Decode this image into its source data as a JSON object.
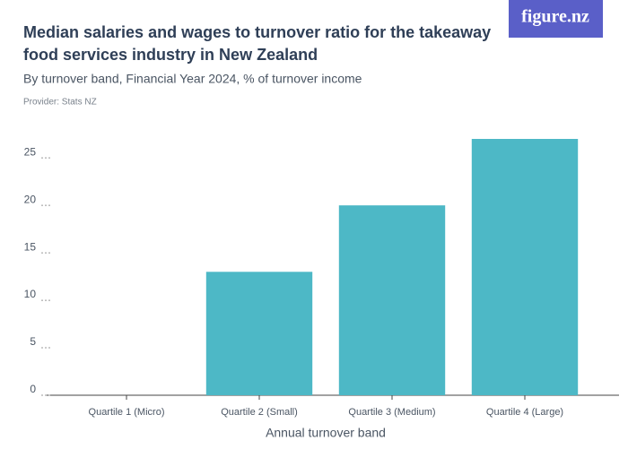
{
  "logo": "figure.nz",
  "chart_data": {
    "type": "bar",
    "title": "Median salaries and wages to turnover ratio for the takeaway food services industry in New Zealand",
    "subtitle": "By turnover band, Financial Year 2024, % of turnover income",
    "provider": "Provider: Stats NZ",
    "x_label": "Annual turnover band",
    "categories": [
      "Quartile 1 (Micro)",
      "Quartile 2 (Small)",
      "Quartile 3 (Medium)",
      "Quartile 4 (Large)"
    ],
    "values": [
      0,
      13,
      20,
      27
    ],
    "color": "#4db8c6",
    "ylim": [
      0,
      27
    ],
    "yticks": [
      0,
      5,
      10,
      15,
      20,
      25
    ]
  }
}
